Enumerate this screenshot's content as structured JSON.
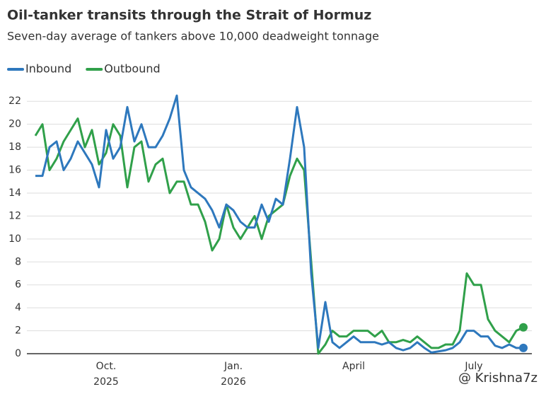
{
  "chart_data": {
    "type": "line",
    "title": "Oil-tanker transits through the Strait of Hormuz",
    "subtitle": "Seven-day average of tankers above 10,000 deadweight tonnage",
    "watermark": "@ Krishna7z",
    "categories": [
      null,
      null,
      null,
      null,
      null,
      null,
      null,
      null,
      null,
      null,
      "Oct.\n2025",
      null,
      null,
      null,
      null,
      null,
      null,
      null,
      null,
      null,
      null,
      null,
      null,
      null,
      null,
      null,
      null,
      null,
      "Jan.\n2026",
      null,
      null,
      null,
      null,
      null,
      null,
      null,
      null,
      null,
      null,
      null,
      null,
      null,
      null,
      null,
      null,
      "April",
      null,
      null,
      null,
      null,
      null,
      null,
      null,
      null,
      null,
      null,
      null,
      null,
      null,
      null,
      null,
      null,
      "July",
      null,
      null,
      null,
      null,
      null,
      null,
      null
    ],
    "series": [
      {
        "name": "Inbound",
        "color": "#2e78bd",
        "values": [
          15.5,
          15.5,
          18,
          18.5,
          16,
          17,
          18.5,
          17.5,
          16.5,
          14.5,
          19.5,
          17,
          18,
          21.5,
          18.5,
          20,
          18,
          18,
          19,
          20.5,
          22.5,
          16,
          14.5,
          14,
          13.5,
          12.5,
          11,
          13,
          12.5,
          11.5,
          11,
          11,
          13,
          11.5,
          13.5,
          13,
          17,
          21.5,
          18,
          7,
          0.5,
          4.5,
          1,
          0.5,
          1,
          1.5,
          1,
          1,
          1,
          0.8,
          1,
          0.5,
          0.3,
          0.5,
          1,
          0.5,
          0.1,
          0.2,
          0.3,
          0.5,
          1,
          2,
          2,
          1.5,
          1.5,
          0.7,
          0.5,
          0.8,
          0.5,
          0.5
        ]
      },
      {
        "name": "Outbound",
        "color": "#30a04a",
        "values": [
          19,
          20,
          16,
          17,
          18.5,
          19.5,
          20.5,
          18,
          19.5,
          16.5,
          17.5,
          20,
          19,
          14.5,
          18,
          18.5,
          15,
          16.5,
          17,
          14,
          15,
          15,
          13,
          13,
          11.5,
          9,
          10,
          13,
          11,
          10,
          11,
          12,
          10,
          12,
          12.5,
          13,
          15.5,
          17,
          16,
          8,
          0,
          0.8,
          2,
          1.5,
          1.5,
          2,
          2,
          2,
          1.5,
          2,
          1,
          1,
          1.2,
          1,
          1.5,
          1,
          0.5,
          0.5,
          0.8,
          0.8,
          2,
          7,
          6,
          6,
          3,
          2,
          1.5,
          1,
          2,
          2.3
        ]
      }
    ],
    "ylim": [
      0,
      23
    ],
    "yticks": [
      0,
      2,
      4,
      6,
      8,
      10,
      12,
      14,
      16,
      18,
      20,
      22
    ],
    "grid": true
  }
}
